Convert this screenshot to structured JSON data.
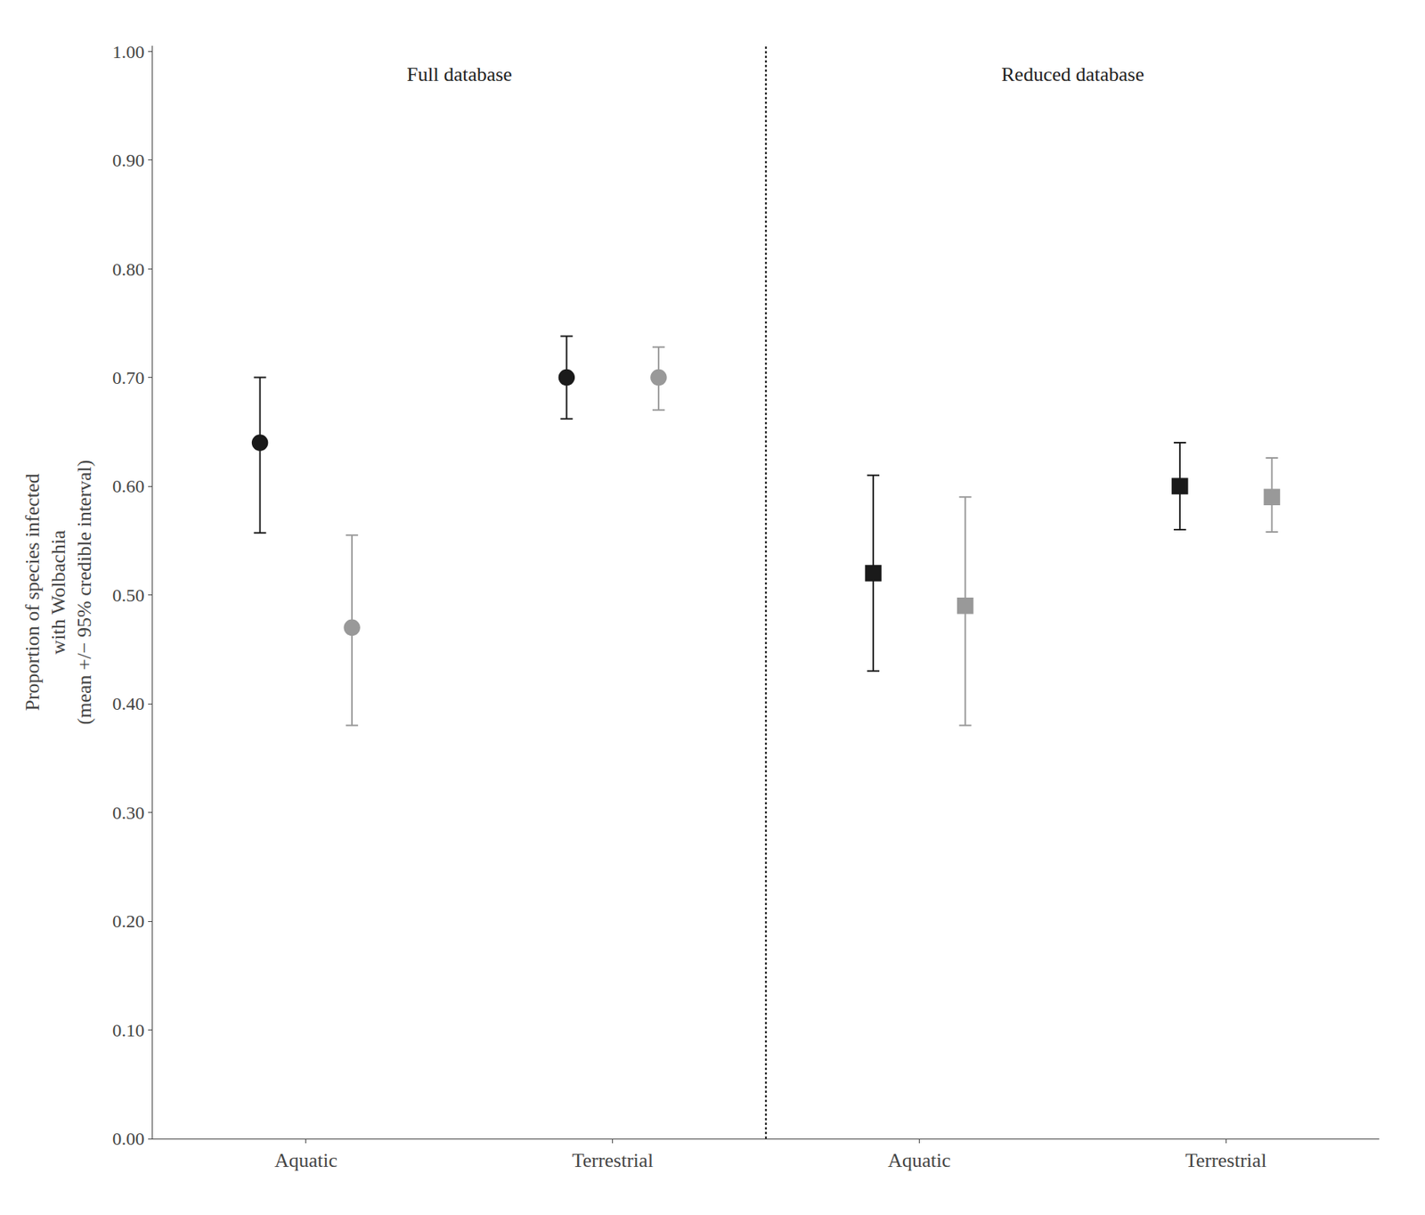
{
  "chart_data": {
    "type": "scatter",
    "categories": [
      "Aquatic",
      "Terrestrial",
      "Aquatic",
      "Terrestrial"
    ],
    "annotations": [
      "Full database",
      "Reduced database"
    ],
    "ylabel": "Proportion of species infected\nwith Wolbachia\n(mean +/− 95% credible interval)",
    "ylim": [
      0.0,
      1.005
    ],
    "yticks": [
      {
        "value": 0.0,
        "label": "0.00"
      },
      {
        "value": 0.1,
        "label": "0.10"
      },
      {
        "value": 0.2,
        "label": "0.20"
      },
      {
        "value": 0.3,
        "label": "0.30"
      },
      {
        "value": 0.4,
        "label": "0.40"
      },
      {
        "value": 0.5,
        "label": "0.50"
      },
      {
        "value": 0.6,
        "label": "0.60"
      },
      {
        "value": 0.7,
        "label": "0.70"
      },
      {
        "value": 0.8,
        "label": "0.80"
      },
      {
        "value": 0.9,
        "label": "0.90"
      },
      {
        "value": 1.0,
        "label": "1.00"
      }
    ],
    "grid": false,
    "series": [
      {
        "color": "#1a1a1a",
        "marker": "circle",
        "values": [
          0.64,
          0.7,
          null,
          null
        ],
        "error_lo": [
          0.083,
          0.038,
          null,
          null
        ],
        "error_hi": [
          0.06,
          0.038,
          null,
          null
        ]
      },
      {
        "color": "#999999",
        "marker": "circle",
        "values": [
          0.47,
          0.7,
          null,
          null
        ],
        "error_lo": [
          0.09,
          0.03,
          null,
          null
        ],
        "error_hi": [
          0.085,
          0.028,
          null,
          null
        ]
      },
      {
        "color": "#1a1a1a",
        "marker": "square",
        "values": [
          null,
          null,
          0.52,
          0.6
        ],
        "error_lo": [
          null,
          null,
          0.09,
          0.04
        ],
        "error_hi": [
          null,
          null,
          0.09,
          0.04
        ]
      },
      {
        "color": "#999999",
        "marker": "square",
        "values": [
          null,
          null,
          0.49,
          0.59
        ],
        "error_lo": [
          null,
          null,
          0.11,
          0.032
        ],
        "error_hi": [
          null,
          null,
          0.1,
          0.036
        ]
      }
    ]
  }
}
